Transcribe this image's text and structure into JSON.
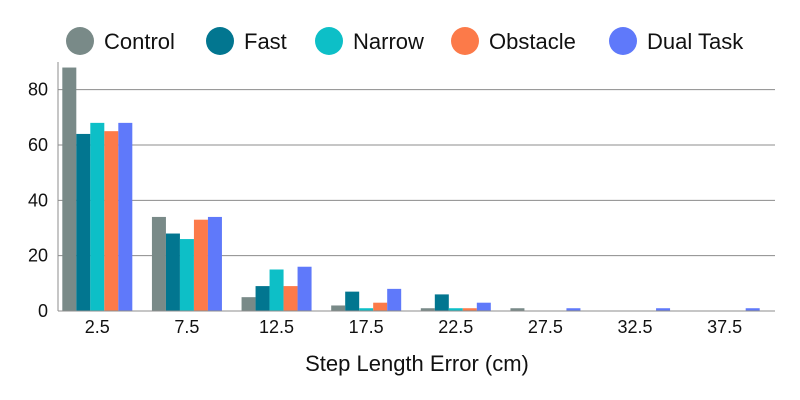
{
  "chart_data": {
    "type": "bar",
    "xlabel": "Step Length Error (cm)",
    "ylabel": "",
    "ylim": [
      0,
      90
    ],
    "yticks": [
      0,
      20,
      40,
      60,
      80
    ],
    "grid": true,
    "legend_position": "top",
    "categories": [
      "2.5",
      "7.5",
      "12.5",
      "17.5",
      "22.5",
      "27.5",
      "32.5",
      "37.5"
    ],
    "series": [
      {
        "name": "Control",
        "color": "#798a88",
        "values": [
          88,
          34,
          5,
          2,
          1,
          1,
          0,
          0
        ]
      },
      {
        "name": "Fast",
        "color": "#027690",
        "values": [
          64,
          28,
          9,
          7,
          6,
          0,
          0,
          0
        ]
      },
      {
        "name": "Narrow",
        "color": "#0dbfc7",
        "values": [
          68,
          26,
          15,
          1,
          1,
          0,
          0,
          0
        ]
      },
      {
        "name": "Obstacle",
        "color": "#fc7a49",
        "values": [
          65,
          33,
          9,
          3,
          1,
          0,
          0,
          0
        ]
      },
      {
        "name": "Dual Task",
        "color": "#5f79fa",
        "values": [
          68,
          34,
          16,
          8,
          3,
          1,
          1,
          1
        ]
      }
    ]
  }
}
